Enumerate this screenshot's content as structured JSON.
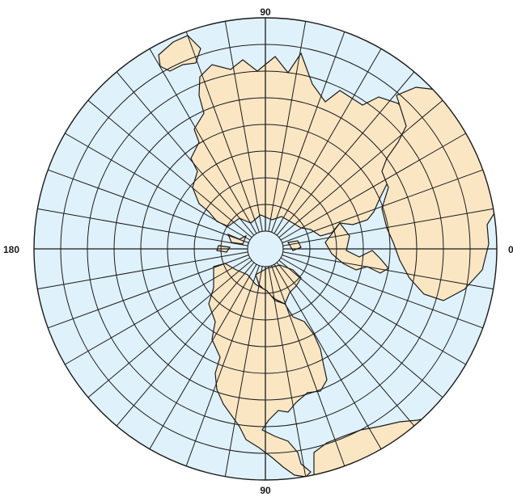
{
  "map": {
    "projection": "polar-azimuthal-north",
    "colors": {
      "ocean": "#dff1fb",
      "land": "#fbe6c4",
      "grid": "#1a1a1a",
      "coast": "#1a1a1a"
    },
    "labels": {
      "top": "90",
      "bottom": "90",
      "left": "180",
      "right": "0"
    },
    "grid": {
      "meridian_step_deg": 10,
      "parallel_step_deg": 10,
      "polar_circle_lat": 80
    }
  }
}
